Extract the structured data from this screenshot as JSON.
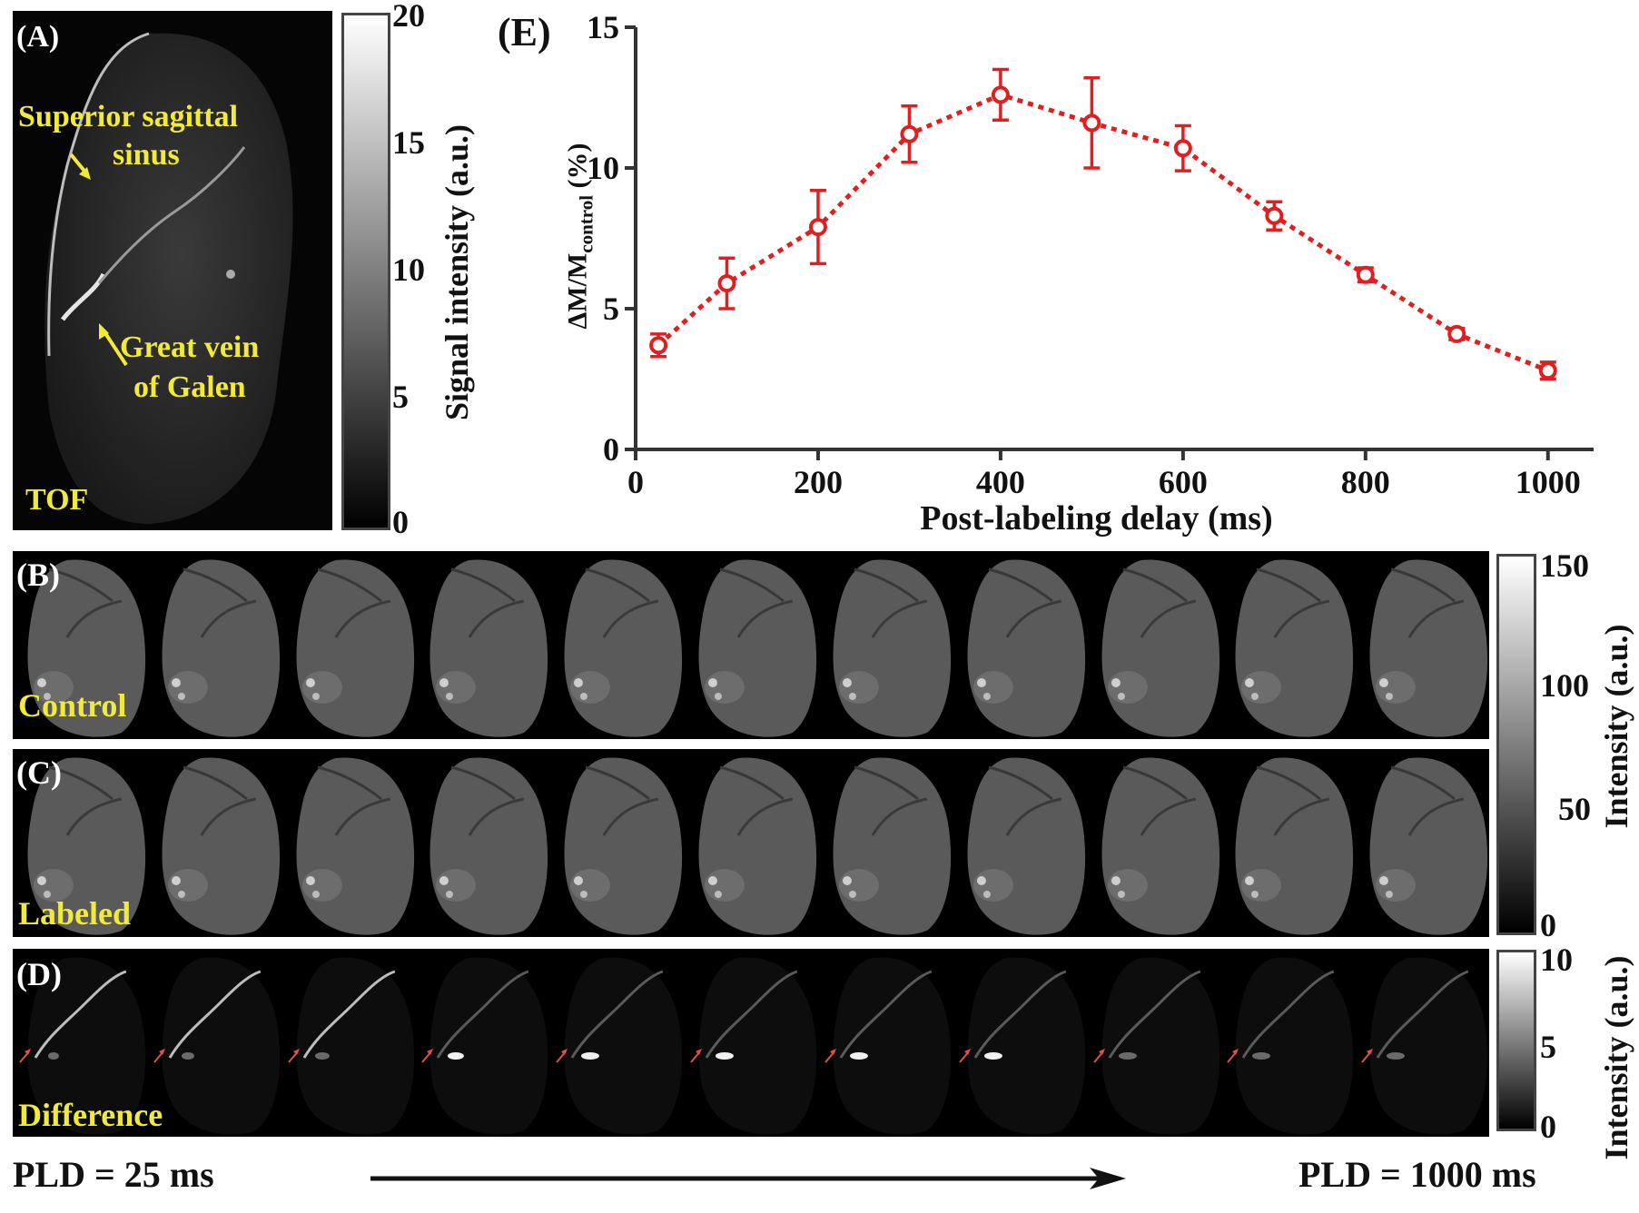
{
  "panelA": {
    "label": "(A)",
    "annotations": [
      "Superior sagittal",
      "sinus",
      "Great vein",
      "of Galen"
    ],
    "sequence": "TOF",
    "colorbar": {
      "ticks": [
        "20",
        "15",
        "10",
        "5",
        "0"
      ],
      "label": "Signal intensity (a.u.)"
    }
  },
  "panelB": {
    "label": "(B)",
    "name": "Control"
  },
  "panelC": {
    "label": "(C)",
    "name": "Labeled"
  },
  "panelD": {
    "label": "(D)",
    "name": "Difference"
  },
  "colorbarBC": {
    "ticks": [
      "150",
      "100",
      "50",
      "0"
    ],
    "label": "Intensity (a.u.)"
  },
  "colorbarD": {
    "ticks": [
      "10",
      "5",
      "0"
    ],
    "label": "Intensity (a.u.)"
  },
  "pld": {
    "start": "PLD = 25 ms",
    "end": "PLD = 1000 ms"
  },
  "colors": {
    "annotation": "#f1ea3a",
    "series": "#e02020",
    "arrow": "#e05050"
  },
  "chart_data": {
    "type": "line",
    "panel_label": "(E)",
    "xlabel": "Post-labeling delay (ms)",
    "ylabel_main": "ΔM/M",
    "ylabel_sub": "control",
    "ylabel_unit": " (%)",
    "xlim": [
      0,
      1050
    ],
    "ylim": [
      0,
      15
    ],
    "xticks": [
      0,
      200,
      400,
      600,
      800,
      1000
    ],
    "yticks": [
      0,
      5,
      10,
      15
    ],
    "series": [
      {
        "x": [
          25,
          100,
          200,
          300,
          400,
          500,
          600,
          700,
          800,
          900,
          1000
        ],
        "y": [
          3.7,
          5.9,
          7.9,
          11.2,
          12.6,
          11.6,
          10.7,
          8.3,
          6.2,
          4.1,
          2.8
        ],
        "err": [
          0.4,
          0.9,
          1.3,
          1.0,
          0.9,
          1.6,
          0.8,
          0.5,
          0.25,
          0.2,
          0.3
        ],
        "line_style": "dotted",
        "marker": "circle"
      }
    ],
    "grid": false
  }
}
